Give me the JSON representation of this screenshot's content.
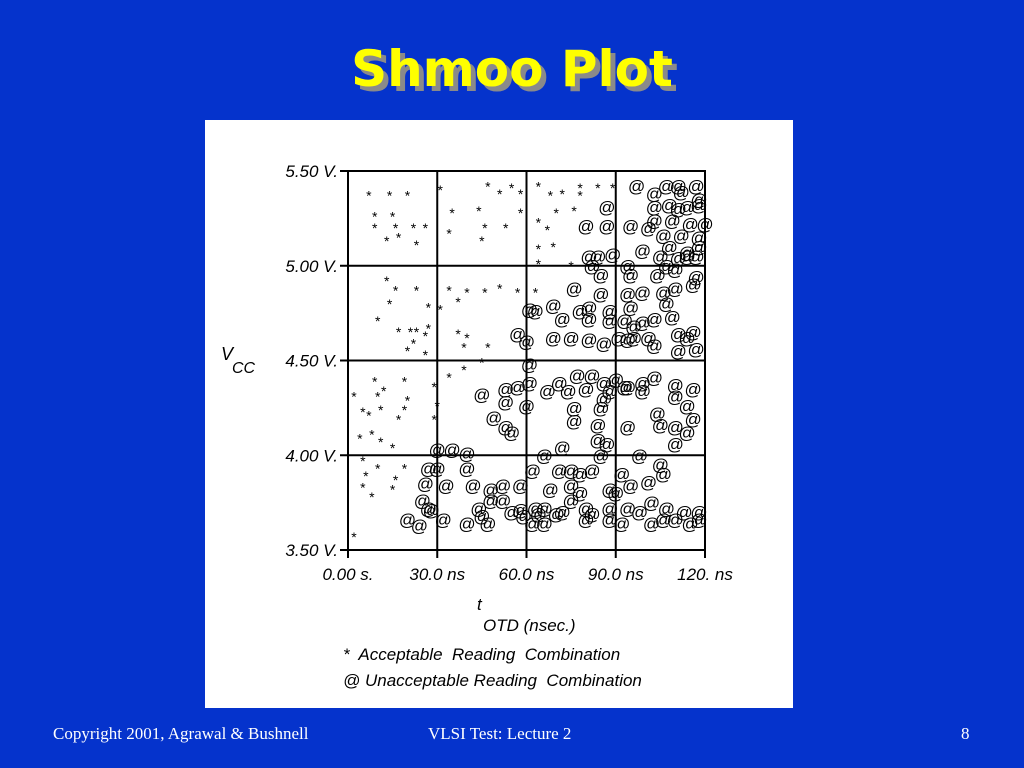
{
  "slide": {
    "title": "Shmoo Plot",
    "footer_left": "Copyright 2001, Agrawal & Bushnell",
    "footer_center": "VLSI Test: Lecture 2",
    "page_number": "8"
  },
  "colors": {
    "background": "#0533cc",
    "title": "#ffff00",
    "title_shadow": "#8a8a8a",
    "panel": "#ffffff",
    "ink": "#000000"
  },
  "chart_data": {
    "type": "scatter",
    "title": "",
    "ylabel_main": "V",
    "ylabel_sub": "CC",
    "xlabel_main": "t",
    "xlabel_sub": "OTD (nsec.)",
    "xlim": [
      0,
      120
    ],
    "ylim": [
      3.5,
      5.5
    ],
    "x_ticks": [
      0,
      30,
      60,
      90,
      120
    ],
    "x_tick_labels": [
      "0.00 s.",
      "30.0 ns",
      "60.0 ns",
      "90.0 ns",
      "120. ns"
    ],
    "y_ticks": [
      3.5,
      4.0,
      4.5,
      5.0,
      5.5
    ],
    "y_tick_labels": [
      "3.50 V.",
      "4.00 V.",
      "4.50 V.",
      "5.00 V.",
      "5.50 V."
    ],
    "grid": true,
    "legend": {
      "acceptable": "*  Acceptable  Reading  Combination",
      "unacceptable": "@ Unacceptable Reading  Combination"
    },
    "series": [
      {
        "name": "Acceptable Reading Combination",
        "marker": "*",
        "points": [
          [
            7,
            5.38
          ],
          [
            14,
            5.38
          ],
          [
            20,
            5.38
          ],
          [
            31,
            5.41
          ],
          [
            47,
            5.43
          ],
          [
            55,
            5.42
          ],
          [
            64,
            5.43
          ],
          [
            78,
            5.42
          ],
          [
            84,
            5.42
          ],
          [
            89,
            5.42
          ],
          [
            51,
            5.39
          ],
          [
            58,
            5.39
          ],
          [
            68,
            5.38
          ],
          [
            72,
            5.39
          ],
          [
            78,
            5.38
          ],
          [
            9,
            5.27
          ],
          [
            15,
            5.27
          ],
          [
            35,
            5.29
          ],
          [
            44,
            5.3
          ],
          [
            58,
            5.29
          ],
          [
            70,
            5.29
          ],
          [
            76,
            5.3
          ],
          [
            9,
            5.21
          ],
          [
            16,
            5.21
          ],
          [
            22,
            5.21
          ],
          [
            26,
            5.21
          ],
          [
            34,
            5.18
          ],
          [
            46,
            5.21
          ],
          [
            53,
            5.21
          ],
          [
            64,
            5.24
          ],
          [
            67,
            5.2
          ],
          [
            13,
            5.14
          ],
          [
            17,
            5.16
          ],
          [
            23,
            5.12
          ],
          [
            45,
            5.14
          ],
          [
            64,
            5.1
          ],
          [
            69,
            5.11
          ],
          [
            64,
            5.02
          ],
          [
            75,
            5.01
          ],
          [
            13,
            4.93
          ],
          [
            16,
            4.88
          ],
          [
            23,
            4.88
          ],
          [
            40,
            4.87
          ],
          [
            34,
            4.88
          ],
          [
            46,
            4.87
          ],
          [
            51,
            4.89
          ],
          [
            57,
            4.87
          ],
          [
            63,
            4.87
          ],
          [
            14,
            4.81
          ],
          [
            27,
            4.79
          ],
          [
            31,
            4.78
          ],
          [
            37,
            4.82
          ],
          [
            10,
            4.72
          ],
          [
            17,
            4.66
          ],
          [
            21,
            4.66
          ],
          [
            23,
            4.66
          ],
          [
            26,
            4.64
          ],
          [
            27,
            4.68
          ],
          [
            37,
            4.65
          ],
          [
            40,
            4.63
          ],
          [
            39,
            4.58
          ],
          [
            47,
            4.58
          ],
          [
            20,
            4.56
          ],
          [
            22,
            4.6
          ],
          [
            26,
            4.54
          ],
          [
            45,
            4.5
          ],
          [
            39,
            4.46
          ],
          [
            34,
            4.42
          ],
          [
            9,
            4.4
          ],
          [
            19,
            4.4
          ],
          [
            20,
            4.3
          ],
          [
            29,
            4.37
          ],
          [
            30,
            4.27
          ],
          [
            12,
            4.35
          ],
          [
            10,
            4.32
          ],
          [
            2,
            4.32
          ],
          [
            5,
            4.24
          ],
          [
            7,
            4.22
          ],
          [
            11,
            4.25
          ],
          [
            19,
            4.25
          ],
          [
            29,
            4.2
          ],
          [
            17,
            4.2
          ],
          [
            8,
            4.12
          ],
          [
            4,
            4.1
          ],
          [
            11,
            4.08
          ],
          [
            15,
            4.05
          ],
          [
            5,
            3.98
          ],
          [
            10,
            3.94
          ],
          [
            19,
            3.94
          ],
          [
            6,
            3.9
          ],
          [
            16,
            3.88
          ],
          [
            5,
            3.84
          ],
          [
            8,
            3.79
          ],
          [
            15,
            3.83
          ],
          [
            2,
            3.58
          ]
        ]
      },
      {
        "name": "Unacceptable Reading Combination",
        "marker": "@",
        "points": [
          [
            97,
            5.42
          ],
          [
            107,
            5.42
          ],
          [
            111,
            5.42
          ],
          [
            117,
            5.42
          ],
          [
            112,
            5.39
          ],
          [
            118,
            5.35
          ],
          [
            103,
            5.38
          ],
          [
            111,
            5.3
          ],
          [
            87,
            5.31
          ],
          [
            103,
            5.31
          ],
          [
            108,
            5.32
          ],
          [
            114,
            5.31
          ],
          [
            118,
            5.32
          ],
          [
            103,
            5.24
          ],
          [
            109,
            5.24
          ],
          [
            115,
            5.22
          ],
          [
            120,
            5.22
          ],
          [
            80,
            5.21
          ],
          [
            87,
            5.21
          ],
          [
            95,
            5.21
          ],
          [
            101,
            5.2
          ],
          [
            106,
            5.16
          ],
          [
            112,
            5.16
          ],
          [
            118,
            5.15
          ],
          [
            118,
            5.1
          ],
          [
            81,
            5.05
          ],
          [
            84,
            5.05
          ],
          [
            89,
            5.06
          ],
          [
            99,
            5.08
          ],
          [
            105,
            5.05
          ],
          [
            108,
            5.1
          ],
          [
            114,
            5.05
          ],
          [
            117,
            5.05
          ],
          [
            82,
            5.0
          ],
          [
            94,
            5.0
          ],
          [
            107,
            5.0
          ],
          [
            111,
            5.04
          ],
          [
            114,
            5.07
          ],
          [
            85,
            4.95
          ],
          [
            95,
            4.95
          ],
          [
            104,
            4.95
          ],
          [
            110,
            4.98
          ],
          [
            117,
            4.94
          ],
          [
            76,
            4.88
          ],
          [
            85,
            4.85
          ],
          [
            94,
            4.85
          ],
          [
            99,
            4.86
          ],
          [
            106,
            4.86
          ],
          [
            116,
            4.9
          ],
          [
            110,
            4.88
          ],
          [
            69,
            4.79
          ],
          [
            81,
            4.78
          ],
          [
            88,
            4.76
          ],
          [
            95,
            4.78
          ],
          [
            107,
            4.8
          ],
          [
            63,
            4.76
          ],
          [
            61,
            4.77
          ],
          [
            72,
            4.72
          ],
          [
            78,
            4.76
          ],
          [
            81,
            4.72
          ],
          [
            88,
            4.71
          ],
          [
            93,
            4.71
          ],
          [
            96,
            4.68
          ],
          [
            99,
            4.7
          ],
          [
            103,
            4.72
          ],
          [
            109,
            4.73
          ],
          [
            101,
            4.62
          ],
          [
            111,
            4.64
          ],
          [
            116,
            4.65
          ],
          [
            114,
            4.62
          ],
          [
            57,
            4.64
          ],
          [
            60,
            4.6
          ],
          [
            69,
            4.62
          ],
          [
            75,
            4.62
          ],
          [
            81,
            4.61
          ],
          [
            86,
            4.59
          ],
          [
            91,
            4.62
          ],
          [
            94,
            4.61
          ],
          [
            96,
            4.62
          ],
          [
            103,
            4.58
          ],
          [
            111,
            4.55
          ],
          [
            117,
            4.56
          ],
          [
            61,
            4.48
          ],
          [
            77,
            4.42
          ],
          [
            82,
            4.42
          ],
          [
            90,
            4.4
          ],
          [
            99,
            4.38
          ],
          [
            103,
            4.41
          ],
          [
            110,
            4.37
          ],
          [
            116,
            4.35
          ],
          [
            53,
            4.35
          ],
          [
            57,
            4.36
          ],
          [
            61,
            4.38
          ],
          [
            71,
            4.38
          ],
          [
            67,
            4.34
          ],
          [
            74,
            4.34
          ],
          [
            80,
            4.35
          ],
          [
            86,
            4.38
          ],
          [
            88,
            4.34
          ],
          [
            94,
            4.36
          ],
          [
            99,
            4.34
          ],
          [
            45,
            4.32
          ],
          [
            53,
            4.28
          ],
          [
            60,
            4.26
          ],
          [
            76,
            4.25
          ],
          [
            85,
            4.25
          ],
          [
            86,
            4.3
          ],
          [
            93,
            4.36
          ],
          [
            110,
            4.31
          ],
          [
            114,
            4.26
          ],
          [
            49,
            4.2
          ],
          [
            53,
            4.15
          ],
          [
            55,
            4.12
          ],
          [
            76,
            4.18
          ],
          [
            84,
            4.16
          ],
          [
            84,
            4.08
          ],
          [
            94,
            4.15
          ],
          [
            105,
            4.16
          ],
          [
            110,
            4.15
          ],
          [
            114,
            4.12
          ],
          [
            116,
            4.19
          ],
          [
            104,
            4.22
          ],
          [
            30,
            4.03
          ],
          [
            35,
            4.03
          ],
          [
            40,
            4.01
          ],
          [
            66,
            4.0
          ],
          [
            72,
            4.04
          ],
          [
            85,
            4.0
          ],
          [
            87,
            4.06
          ],
          [
            98,
            4.0
          ],
          [
            110,
            4.06
          ],
          [
            27,
            3.93
          ],
          [
            30,
            3.93
          ],
          [
            40,
            3.93
          ],
          [
            62,
            3.92
          ],
          [
            71,
            3.92
          ],
          [
            75,
            3.92
          ],
          [
            78,
            3.9
          ],
          [
            82,
            3.92
          ],
          [
            92,
            3.9
          ],
          [
            105,
            3.95
          ],
          [
            26,
            3.85
          ],
          [
            33,
            3.84
          ],
          [
            42,
            3.84
          ],
          [
            48,
            3.82
          ],
          [
            52,
            3.84
          ],
          [
            58,
            3.84
          ],
          [
            68,
            3.82
          ],
          [
            75,
            3.84
          ],
          [
            78,
            3.8
          ],
          [
            88,
            3.82
          ],
          [
            90,
            3.8
          ],
          [
            95,
            3.84
          ],
          [
            101,
            3.86
          ],
          [
            106,
            3.9
          ],
          [
            25,
            3.76
          ],
          [
            27,
            3.72
          ],
          [
            28,
            3.71
          ],
          [
            44,
            3.72
          ],
          [
            48,
            3.76
          ],
          [
            52,
            3.76
          ],
          [
            58,
            3.71
          ],
          [
            63,
            3.72
          ],
          [
            66,
            3.72
          ],
          [
            72,
            3.7
          ],
          [
            75,
            3.76
          ],
          [
            80,
            3.72
          ],
          [
            88,
            3.72
          ],
          [
            94,
            3.72
          ],
          [
            102,
            3.75
          ],
          [
            107,
            3.72
          ],
          [
            113,
            3.7
          ],
          [
            118,
            3.7
          ],
          [
            20,
            3.66
          ],
          [
            24,
            3.63
          ],
          [
            32,
            3.66
          ],
          [
            40,
            3.64
          ],
          [
            45,
            3.68
          ],
          [
            47,
            3.64
          ],
          [
            55,
            3.7
          ],
          [
            59,
            3.68
          ],
          [
            64,
            3.69
          ],
          [
            70,
            3.69
          ],
          [
            80,
            3.66
          ],
          [
            82,
            3.69
          ],
          [
            88,
            3.66
          ],
          [
            92,
            3.64
          ],
          [
            98,
            3.7
          ],
          [
            102,
            3.64
          ],
          [
            106,
            3.66
          ],
          [
            110,
            3.66
          ],
          [
            115,
            3.64
          ],
          [
            118,
            3.66
          ],
          [
            62,
            3.64
          ],
          [
            66,
            3.64
          ]
        ]
      }
    ]
  }
}
